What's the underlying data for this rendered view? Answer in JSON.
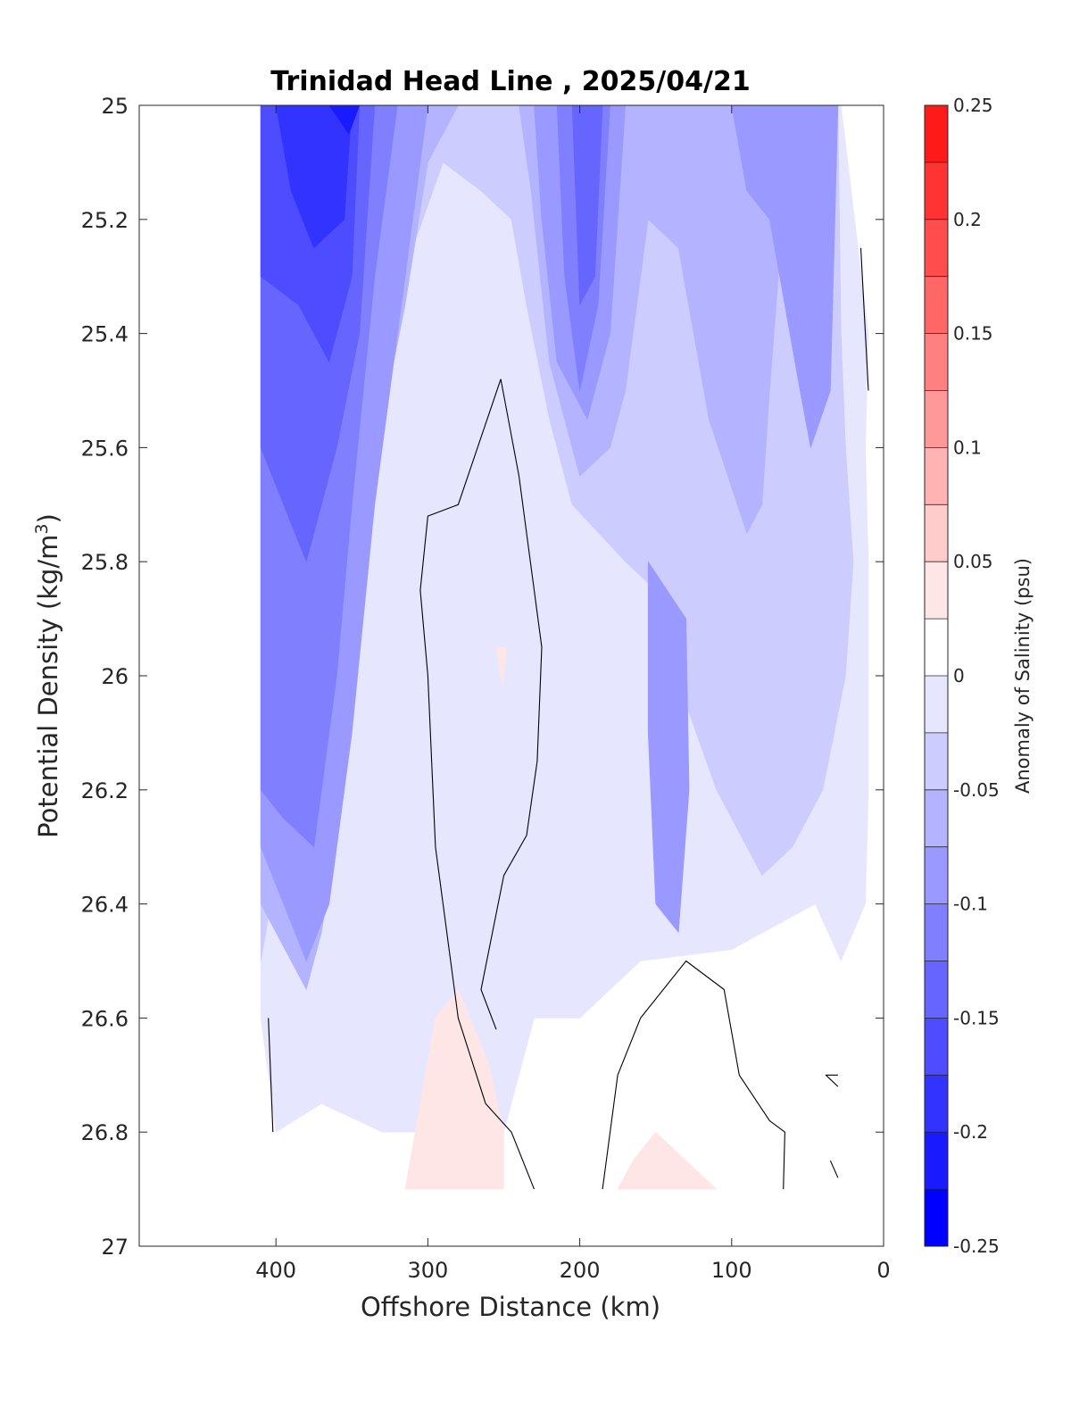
{
  "chart_data": {
    "type": "contour",
    "title": "Trinidad Head Line , 2025/04/21",
    "xlabel": "Offshore Distance (km)",
    "ylabel_main": "Potential Density (kg/m",
    "ylabel_sup": "3",
    "ylabel_close": ")",
    "xlim": [
      490,
      0
    ],
    "ylim": [
      27,
      25
    ],
    "y_reversed": true,
    "x_ticks": [
      400,
      300,
      200,
      100,
      0
    ],
    "y_ticks": [
      25,
      25.2,
      25.4,
      25.6,
      25.8,
      26,
      26.2,
      26.4,
      26.6,
      26.8,
      27
    ],
    "x_tick_labels": [
      "400",
      "300",
      "200",
      "100",
      "0"
    ],
    "y_tick_labels": [
      "25",
      "25.2",
      "25.4",
      "25.6",
      "25.8",
      "26",
      "26.2",
      "26.4",
      "26.6",
      "26.8",
      "27"
    ],
    "colorbar": {
      "label": "Anomaly of Salinity (psu)",
      "range": [
        -0.25,
        0.25
      ],
      "levels": [
        -0.25,
        -0.225,
        -0.2,
        -0.175,
        -0.15,
        -0.125,
        -0.1,
        -0.075,
        -0.05,
        -0.025,
        0,
        0.025,
        0.05,
        0.075,
        0.1,
        0.125,
        0.15,
        0.175,
        0.2,
        0.225,
        0.25
      ],
      "tick_values": [
        -0.25,
        -0.2,
        -0.15,
        -0.1,
        -0.05,
        0,
        0.05,
        0.1,
        0.15,
        0.2,
        0.25
      ],
      "tick_labels": [
        "-0.25",
        "-0.2",
        "-0.15",
        "-0.1",
        "-0.05",
        "0",
        "0.05",
        "0.1",
        "0.15",
        "0.2",
        "0.25"
      ],
      "colors": [
        "#0000ff",
        "#1a1aff",
        "#3333ff",
        "#4d4dff",
        "#6666ff",
        "#8080ff",
        "#9999ff",
        "#b3b3ff",
        "#ccccff",
        "#e6e6ff",
        "#ffffff",
        "#ffffff",
        "#ffe6e6",
        "#ffcccc",
        "#ffb3b3",
        "#ff9999",
        "#ff8080",
        "#ff6666",
        "#ff4d4d",
        "#ff3333",
        "#ff1a1a",
        "#ff0000"
      ]
    },
    "data_extent": {
      "x": [
        410,
        3
      ],
      "y": [
        25,
        26.9
      ]
    },
    "fill_regions": [
      {
        "anomaly": -0.025,
        "color": "#e6e6ff",
        "points": [
          [
            410,
            25
          ],
          [
            28,
            25
          ],
          [
            10,
            25.4
          ],
          [
            12,
            25.6
          ],
          [
            10,
            25.8
          ],
          [
            10,
            26.2
          ],
          [
            12,
            26.4
          ],
          [
            28,
            26.5
          ],
          [
            45,
            26.4
          ],
          [
            100,
            26.48
          ],
          [
            160,
            26.5
          ],
          [
            200,
            26.6
          ],
          [
            230,
            26.6
          ],
          [
            250,
            26.8
          ],
          [
            330,
            26.8
          ],
          [
            370,
            26.75
          ],
          [
            400,
            26.8
          ],
          [
            410,
            26.6
          ]
        ]
      },
      {
        "anomaly": -0.05,
        "color": "#ccccff",
        "points": [
          [
            410,
            25
          ],
          [
            30,
            25
          ],
          [
            28,
            25.4
          ],
          [
            25,
            25.6
          ],
          [
            20,
            25.8
          ],
          [
            25,
            26.0
          ],
          [
            40,
            26.2
          ],
          [
            60,
            26.3
          ],
          [
            80,
            26.35
          ],
          [
            110,
            26.2
          ],
          [
            130,
            26.05
          ],
          [
            140,
            25.95
          ],
          [
            150,
            25.85
          ],
          [
            170,
            25.8
          ],
          [
            205,
            25.7
          ],
          [
            220,
            25.55
          ],
          [
            235,
            25.35
          ],
          [
            245,
            25.2
          ],
          [
            265,
            25.15
          ],
          [
            290,
            25.1
          ],
          [
            310,
            25.25
          ],
          [
            330,
            25.55
          ],
          [
            360,
            25.8
          ],
          [
            380,
            26.15
          ],
          [
            400,
            26.35
          ],
          [
            410,
            26.5
          ]
        ]
      },
      {
        "anomaly": -0.075,
        "color": "#b3b3ff",
        "points": [
          [
            410,
            25
          ],
          [
            280,
            25
          ],
          [
            300,
            25.1
          ],
          [
            315,
            25.35
          ],
          [
            330,
            25.55
          ],
          [
            345,
            25.9
          ],
          [
            355,
            26.2
          ],
          [
            370,
            26.45
          ],
          [
            380,
            26.55
          ],
          [
            400,
            26.45
          ],
          [
            410,
            26.4
          ]
        ]
      },
      {
        "anomaly": -0.075,
        "color": "#b3b3ff",
        "points": [
          [
            240,
            25
          ],
          [
            60,
            25
          ],
          [
            65,
            25.15
          ],
          [
            75,
            25.5
          ],
          [
            80,
            25.7
          ],
          [
            90,
            25.75
          ],
          [
            115,
            25.55
          ],
          [
            135,
            25.25
          ],
          [
            155,
            25.2
          ],
          [
            170,
            25.5
          ],
          [
            180,
            25.6
          ],
          [
            200,
            25.65
          ],
          [
            220,
            25.45
          ],
          [
            232,
            25.15
          ]
        ]
      },
      {
        "anomaly": -0.1,
        "color": "#9999ff",
        "points": [
          [
            410,
            25
          ],
          [
            300,
            25
          ],
          [
            315,
            25.3
          ],
          [
            335,
            25.7
          ],
          [
            350,
            26.1
          ],
          [
            365,
            26.4
          ],
          [
            380,
            26.5
          ],
          [
            395,
            26.4
          ],
          [
            410,
            26.3
          ]
        ]
      },
      {
        "anomaly": -0.1,
        "color": "#9999ff",
        "points": [
          [
            230,
            25
          ],
          [
            170,
            25
          ],
          [
            180,
            25.4
          ],
          [
            195,
            25.55
          ],
          [
            215,
            25.45
          ],
          [
            225,
            25.2
          ]
        ]
      },
      {
        "anomaly": -0.1,
        "color": "#9999ff",
        "points": [
          [
            100,
            25
          ],
          [
            30,
            25
          ],
          [
            35,
            25.5
          ],
          [
            48,
            25.6
          ],
          [
            55,
            25.5
          ],
          [
            75,
            25.2
          ],
          [
            90,
            25.15
          ]
        ]
      },
      {
        "anomaly": -0.1,
        "color": "#9999ff",
        "points": [
          [
            155,
            25.8
          ],
          [
            130,
            25.9
          ],
          [
            128,
            26.2
          ],
          [
            135,
            26.45
          ],
          [
            150,
            26.4
          ],
          [
            155,
            26.1
          ]
        ]
      },
      {
        "anomaly": -0.125,
        "color": "#8080ff",
        "points": [
          [
            410,
            25
          ],
          [
            320,
            25
          ],
          [
            335,
            25.3
          ],
          [
            350,
            25.7
          ],
          [
            360,
            26.0
          ],
          [
            375,
            26.3
          ],
          [
            395,
            26.25
          ],
          [
            410,
            26.2
          ]
        ]
      },
      {
        "anomaly": -0.125,
        "color": "#8080ff",
        "points": [
          [
            215,
            25
          ],
          [
            180,
            25
          ],
          [
            188,
            25.35
          ],
          [
            200,
            25.5
          ],
          [
            210,
            25.3
          ]
        ]
      },
      {
        "anomaly": -0.15,
        "color": "#6666ff",
        "points": [
          [
            410,
            25
          ],
          [
            335,
            25
          ],
          [
            345,
            25.4
          ],
          [
            360,
            25.6
          ],
          [
            380,
            25.8
          ],
          [
            395,
            25.7
          ],
          [
            410,
            25.6
          ]
        ]
      },
      {
        "anomaly": -0.15,
        "color": "#6666ff",
        "points": [
          [
            205,
            25
          ],
          [
            185,
            25
          ],
          [
            190,
            25.3
          ],
          [
            200,
            25.35
          ]
        ]
      },
      {
        "anomaly": -0.175,
        "color": "#4d4dff",
        "points": [
          [
            410,
            25
          ],
          [
            345,
            25
          ],
          [
            350,
            25.3
          ],
          [
            365,
            25.45
          ],
          [
            385,
            25.35
          ],
          [
            410,
            25.3
          ]
        ]
      },
      {
        "anomaly": -0.2,
        "color": "#3333ff",
        "points": [
          [
            400,
            25
          ],
          [
            350,
            25
          ],
          [
            355,
            25.2
          ],
          [
            375,
            25.25
          ],
          [
            390,
            25.15
          ]
        ]
      },
      {
        "anomaly": -0.225,
        "color": "#1a1aff",
        "points": [
          [
            365,
            25
          ],
          [
            345,
            25
          ],
          [
            352,
            25.05
          ]
        ]
      },
      {
        "anomaly": 0.025,
        "color": "#ffe6e6",
        "points": [
          [
            315,
            26.9
          ],
          [
            250,
            26.9
          ],
          [
            250,
            26.8
          ],
          [
            260,
            26.68
          ],
          [
            280,
            26.55
          ],
          [
            295,
            26.6
          ]
        ]
      },
      {
        "anomaly": 0.025,
        "color": "#ffe6e6",
        "points": [
          [
            175,
            26.9
          ],
          [
            110,
            26.9
          ],
          [
            130,
            26.85
          ],
          [
            150,
            26.8
          ],
          [
            165,
            26.85
          ]
        ]
      },
      {
        "anomaly": 0.025,
        "color": "#ffe6e6",
        "points": [
          [
            255,
            25.95
          ],
          [
            248,
            25.95
          ],
          [
            251,
            26.02
          ]
        ]
      }
    ],
    "zero_contours": [
      {
        "points": [
          [
            252,
            25.48
          ],
          [
            280,
            25.7
          ],
          [
            300,
            25.72
          ],
          [
            305,
            25.85
          ],
          [
            300,
            26.0
          ],
          [
            295,
            26.3
          ],
          [
            280,
            26.6
          ],
          [
            262,
            26.75
          ],
          [
            245,
            26.8
          ],
          [
            230,
            26.9
          ]
        ]
      },
      {
        "points": [
          [
            252,
            25.48
          ],
          [
            240,
            25.65
          ],
          [
            225,
            25.95
          ],
          [
            228,
            26.15
          ],
          [
            235,
            26.28
          ],
          [
            250,
            26.35
          ],
          [
            265,
            26.55
          ],
          [
            255,
            26.62
          ]
        ]
      },
      {
        "points": [
          [
            185,
            26.9
          ],
          [
            175,
            26.7
          ],
          [
            160,
            26.6
          ],
          [
            130,
            26.5
          ],
          [
            105,
            26.55
          ],
          [
            95,
            26.7
          ],
          [
            75,
            26.78
          ],
          [
            65,
            26.8
          ],
          [
            66,
            26.9
          ]
        ]
      },
      {
        "points": [
          [
            405,
            26.6
          ],
          [
            402,
            26.8
          ]
        ]
      },
      {
        "points": [
          [
            15,
            25.25
          ],
          [
            10,
            25.5
          ]
        ]
      },
      {
        "points": [
          [
            30,
            26.7
          ],
          [
            38,
            26.7
          ],
          [
            30,
            26.72
          ]
        ]
      },
      {
        "points": [
          [
            35,
            26.85
          ],
          [
            30,
            26.88
          ]
        ]
      }
    ]
  }
}
